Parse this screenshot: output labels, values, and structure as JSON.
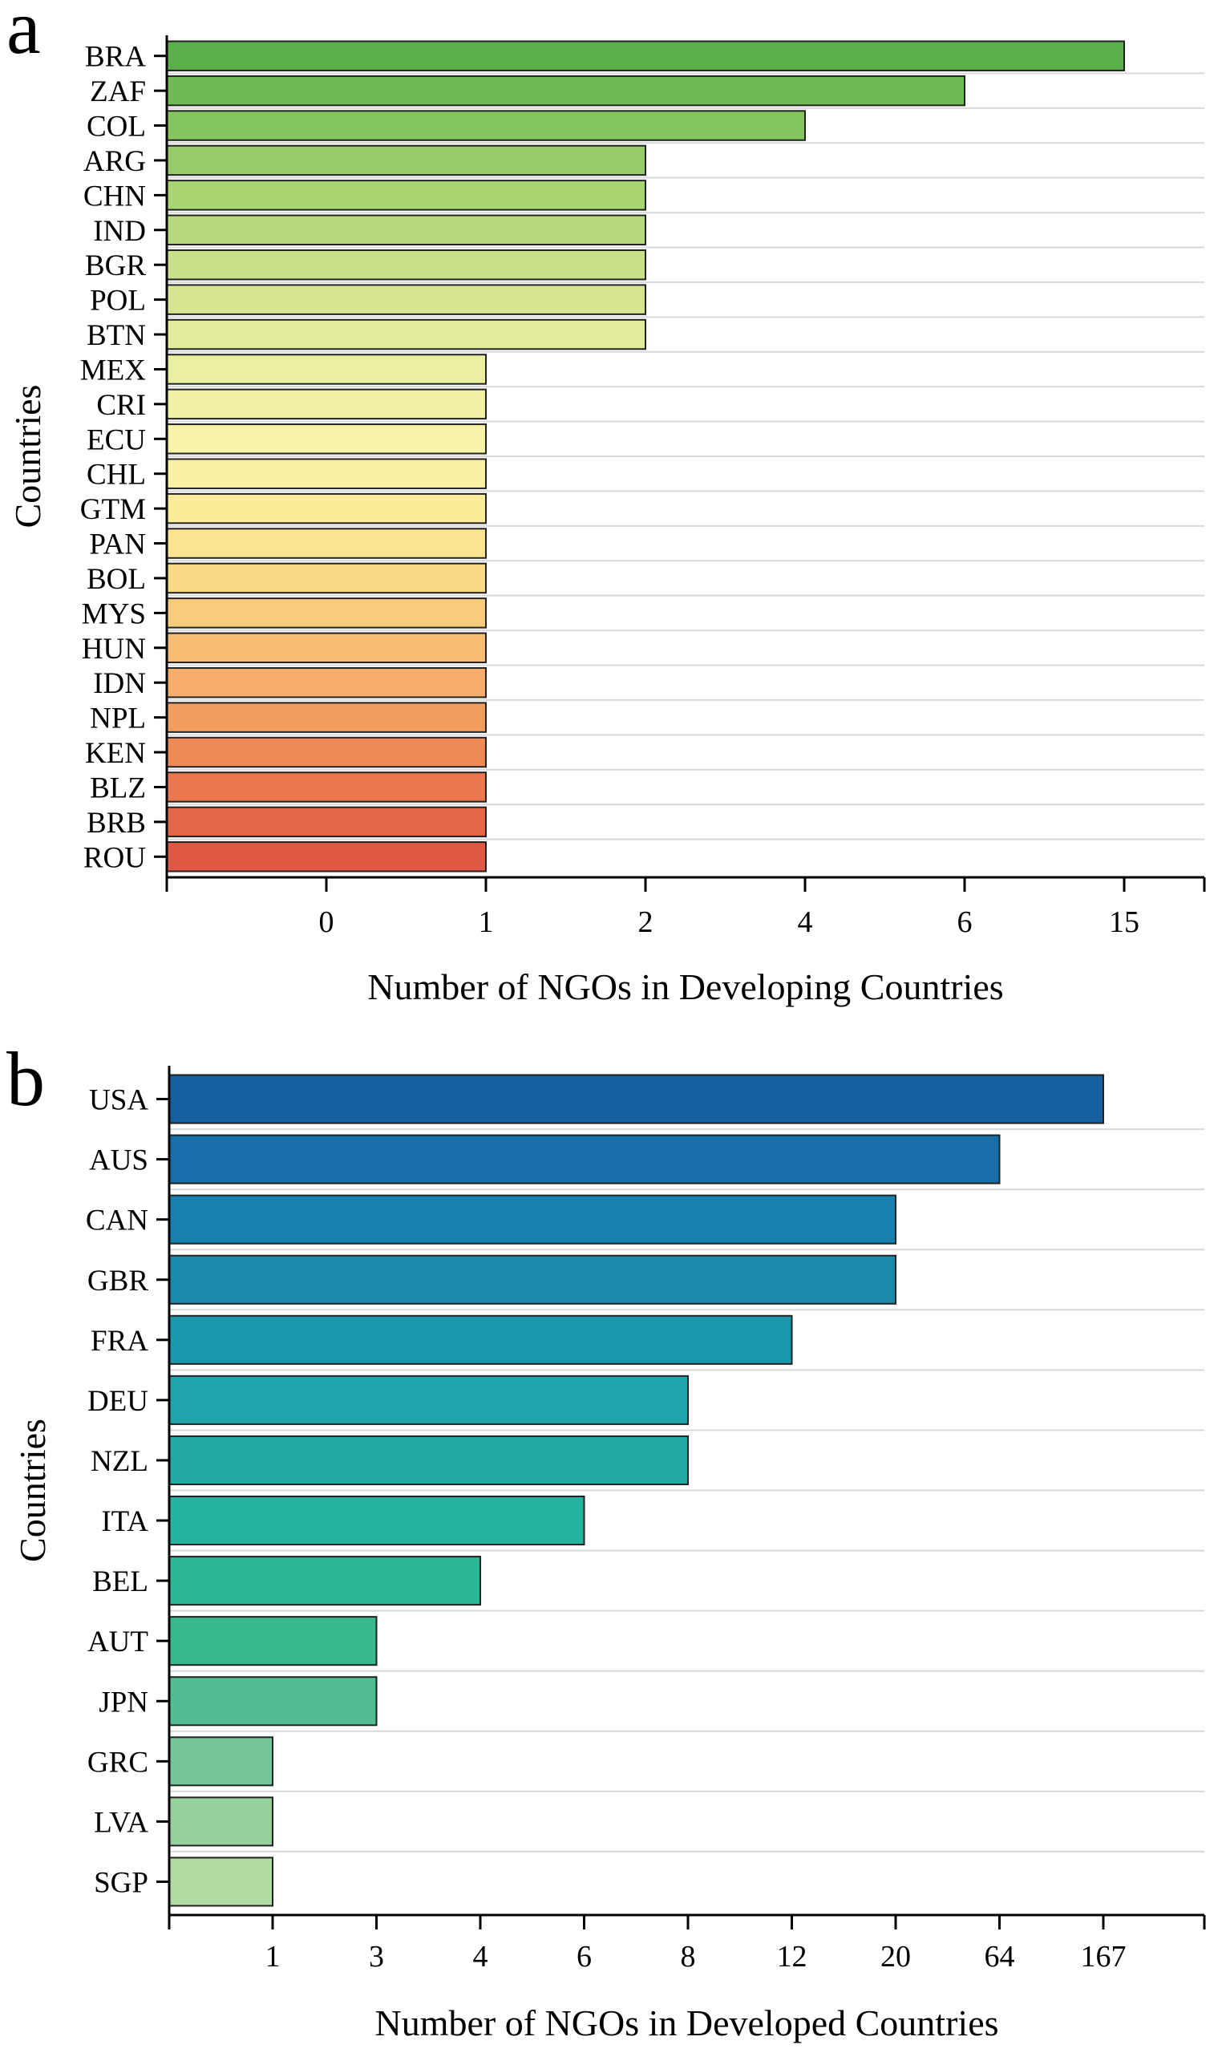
{
  "chart_data": [
    {
      "type": "bar",
      "orientation": "horizontal",
      "panel": "a",
      "categories": [
        "BRA",
        "ZAF",
        "COL",
        "ARG",
        "CHN",
        "IND",
        "BGR",
        "POL",
        "BTN",
        "MEX",
        "CRI",
        "ECU",
        "CHL",
        "GTM",
        "PAN",
        "BOL",
        "MYS",
        "HUN",
        "IDN",
        "NPL",
        "KEN",
        "BLZ",
        "BRB",
        "ROU"
      ],
      "values": [
        15,
        6,
        4,
        2,
        2,
        2,
        2,
        2,
        2,
        1,
        1,
        1,
        1,
        1,
        1,
        1,
        1,
        1,
        1,
        1,
        1,
        1,
        1,
        1
      ],
      "bar_colors": [
        "#5aae4b",
        "#6fba55",
        "#85c55e",
        "#97cd68",
        "#a8d472",
        "#b8da7d",
        "#c8e087",
        "#d6e690",
        "#e2eb99",
        "#ebefa0",
        "#f2f2a6",
        "#f7f3a8",
        "#faf1a2",
        "#fbec99",
        "#fbe48f",
        "#fad985",
        "#f9cc7c",
        "#f7bd72",
        "#f5ad69",
        "#f29c60",
        "#ef8a57",
        "#ea774e",
        "#e56647",
        "#e05743"
      ],
      "x_ticks": [
        "0",
        "1",
        "2",
        "4",
        "6",
        "15"
      ],
      "xlabel": "Number of NGOs in Developing Countries",
      "ylabel": "Countries",
      "grid": true
    },
    {
      "type": "bar",
      "orientation": "horizontal",
      "panel": "b",
      "categories": [
        "USA",
        "AUS",
        "CAN",
        "GBR",
        "FRA",
        "DEU",
        "NZL",
        "ITA",
        "BEL",
        "AUT",
        "JPN",
        "GRC",
        "LVA",
        "SGP"
      ],
      "values": [
        167,
        64,
        20,
        20,
        12,
        8,
        8,
        6,
        4,
        3,
        3,
        1,
        1,
        1
      ],
      "bar_colors": [
        "#1660a0",
        "#176ea8",
        "#1880ae",
        "#1a8aaa",
        "#1a99ae",
        "#1ea4aa",
        "#22aba4",
        "#25b29e",
        "#2ab894",
        "#38b98c",
        "#52bc92",
        "#74c59a",
        "#97d09f",
        "#b1dba0"
      ],
      "x_ticks": [
        "1",
        "3",
        "4",
        "6",
        "8",
        "12",
        "20",
        "64",
        "167"
      ],
      "xlabel": "Number of NGOs in Developed Countries",
      "ylabel": "Countries",
      "grid": true
    }
  ]
}
